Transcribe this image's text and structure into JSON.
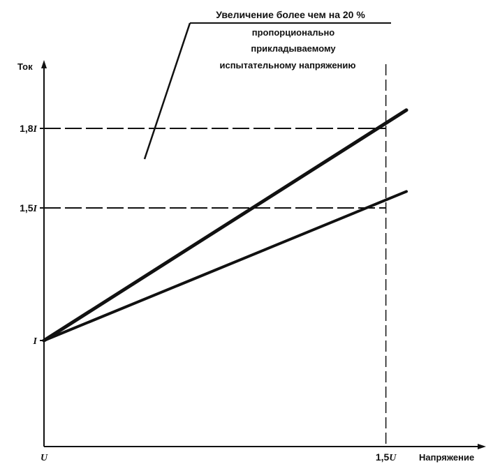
{
  "chart_data": {
    "type": "line",
    "ylabel": "Ток",
    "xlabel": "Напряжение",
    "x_ticks": [
      {
        "value": 1.0,
        "label_main": "U",
        "label_prefix": ""
      },
      {
        "value": 1.5,
        "label_main": "U",
        "label_prefix": "1,5"
      }
    ],
    "y_ticks": [
      {
        "value": 1.0,
        "label_main": "I",
        "label_prefix": ""
      },
      {
        "value": 1.5,
        "label_main": "I",
        "label_prefix": "1,5"
      },
      {
        "value": 1.8,
        "label_main": "I",
        "label_prefix": "1,8"
      }
    ],
    "xlim": [
      1.0,
      1.53
    ],
    "ylim": [
      0.6,
      2.0
    ],
    "series": [
      {
        "x": [
          1.0,
          1.53
        ],
        "y": [
          1.0,
          1.869
        ]
      },
      {
        "x": [
          1.0,
          1.53
        ],
        "y": [
          1.0,
          1.562
        ]
      }
    ],
    "reference_lines": [
      {
        "orientation": "horizontal",
        "value": 1.8,
        "style": "dashed"
      },
      {
        "orientation": "horizontal",
        "value": 1.5,
        "style": "dashed"
      },
      {
        "orientation": "vertical",
        "value": 1.5,
        "style": "dashed"
      }
    ],
    "annotation": {
      "lines": [
        "Увеличение более чем на 20 %",
        "пропорционально",
        "прикладываемому",
        "испытательному напряжению"
      ]
    }
  }
}
